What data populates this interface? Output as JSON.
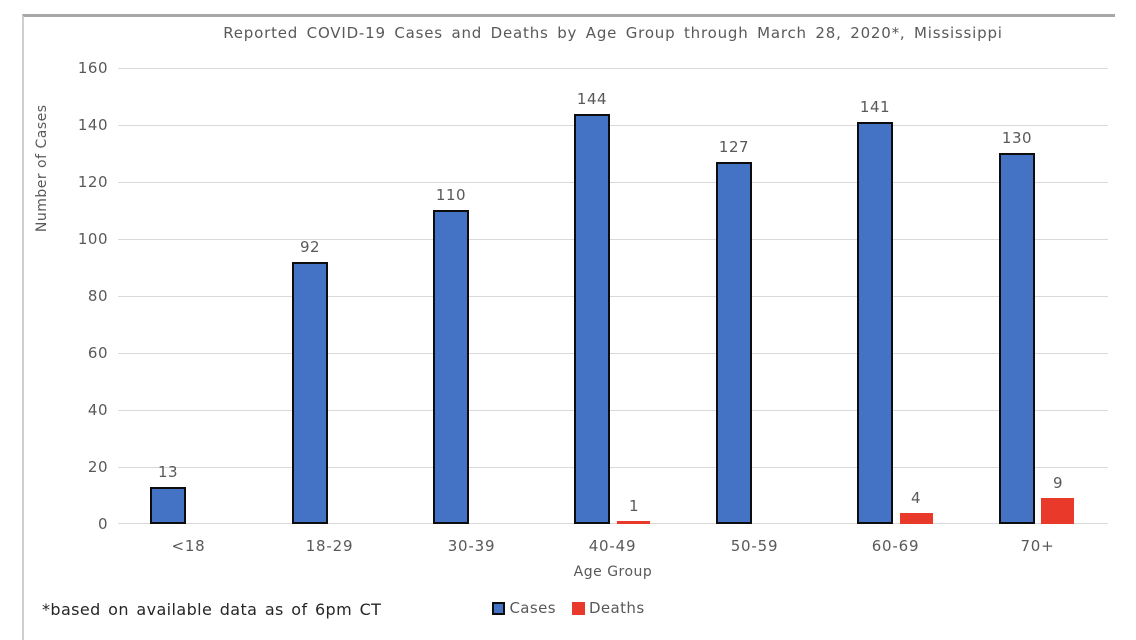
{
  "chart_data": {
    "type": "bar",
    "title": "Reported COVID-19 Cases and Deaths by Age Group through March 28, 2020*, Mississippi",
    "xlabel": "Age Group",
    "ylabel": "Number of Cases",
    "categories": [
      "<18",
      "18-29",
      "30-39",
      "40-49",
      "50-59",
      "60-69",
      "70+"
    ],
    "series": [
      {
        "name": "Cases",
        "color": "#4472c4",
        "border_color": "#0d0d0d",
        "values": [
          13,
          92,
          110,
          144,
          127,
          141,
          130
        ]
      },
      {
        "name": "Deaths",
        "color": "#e8392b",
        "border_color": "#e8392b",
        "values": [
          0,
          0,
          0,
          1,
          0,
          4,
          9
        ]
      }
    ],
    "ylim": [
      0,
      160
    ],
    "yticks": [
      0,
      20,
      40,
      60,
      80,
      100,
      120,
      140,
      160
    ],
    "grid": true,
    "legend_position": "bottom",
    "data_labels": true
  },
  "footnote": "*based on available data as of 6pm CT",
  "colors": {
    "cases": "#4472c4",
    "deaths": "#e8392b",
    "grid": "#d9d9d9",
    "chart_text": "#595959",
    "footnote_text": "#262626",
    "frame_border": "#a8a8a8"
  }
}
